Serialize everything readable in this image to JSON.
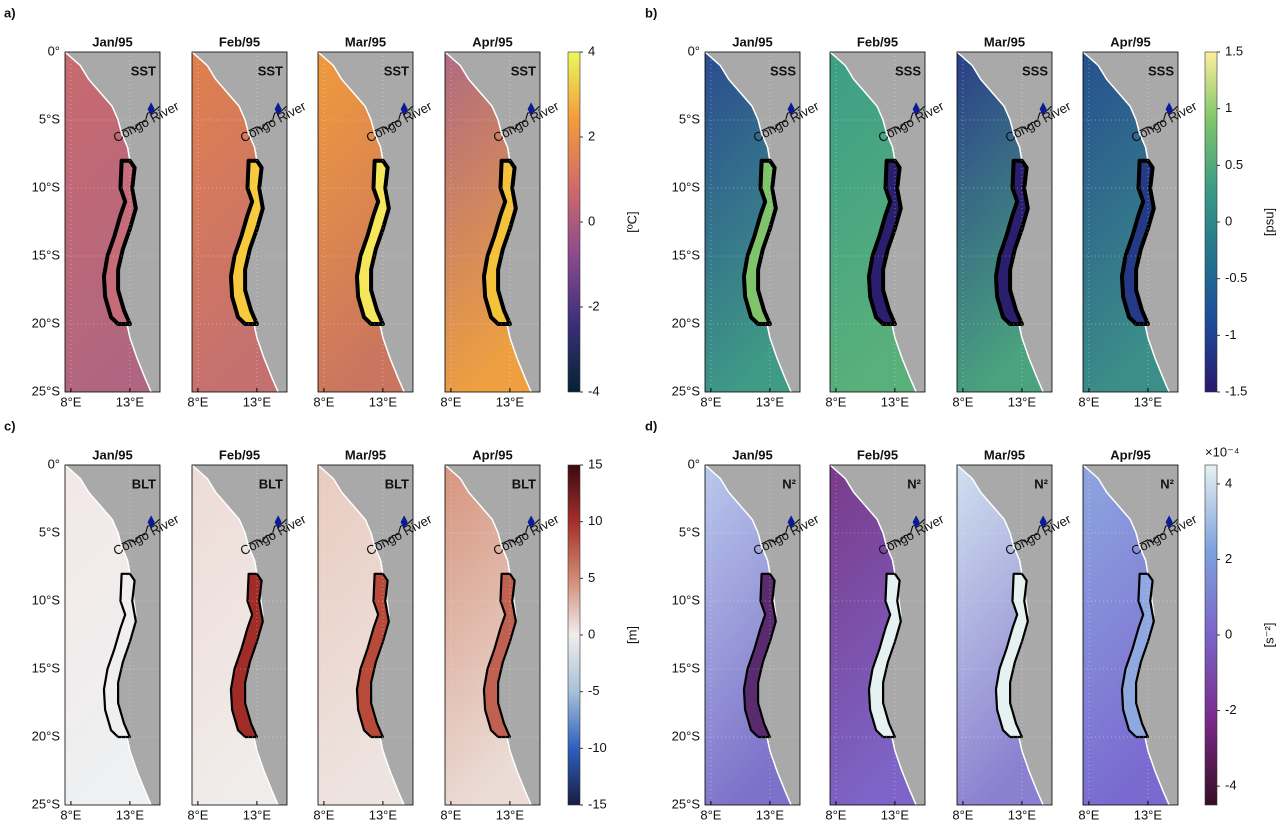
{
  "months": [
    "Jan/95",
    "Feb/95",
    "Mar/95",
    "Apr/95"
  ],
  "lat_ticks": [
    {
      "value": 0,
      "label": "0°"
    },
    {
      "value": -5,
      "label": "5°S"
    },
    {
      "value": -10,
      "label": "10°S"
    },
    {
      "value": -15,
      "label": "15°S"
    },
    {
      "value": -20,
      "label": "20°S"
    },
    {
      "value": -25,
      "label": "25°S"
    }
  ],
  "lon_ticks": [
    {
      "value": 8,
      "label": "8°E"
    },
    {
      "value": 13,
      "label": "13°E"
    }
  ],
  "river_label": "Congo River",
  "panels": [
    {
      "label": "a)",
      "variable": "SST",
      "colorbar": {
        "label": "[ºC]",
        "lim": [
          -4,
          4
        ],
        "ticks": [
          4,
          2,
          0,
          -2,
          -4
        ],
        "colors": [
          "#042333",
          "#3a2f7a",
          "#8a4a8e",
          "#d06a6a",
          "#f49a3c",
          "#e8fa5b"
        ]
      }
    },
    {
      "label": "b)",
      "variable": "SSS",
      "colorbar": {
        "label": "[psu]",
        "lim": [
          -1.5,
          1.5
        ],
        "ticks": [
          1.5,
          1,
          0.5,
          0,
          -0.5,
          -1,
          -1.5
        ],
        "colors": [
          "#2a186c",
          "#1d4b9a",
          "#23738e",
          "#3c9b85",
          "#7ec66a",
          "#fdef9a"
        ]
      }
    },
    {
      "label": "c)",
      "variable": "BLT",
      "colorbar": {
        "label": "[m]",
        "lim": [
          -15,
          15
        ],
        "ticks": [
          15,
          10,
          5,
          0,
          -5,
          -10,
          -15
        ],
        "colors": [
          "#181c43",
          "#2f5fbf",
          "#a6c1d9",
          "#f1ecec",
          "#d08a74",
          "#a42f2a",
          "#3c0912"
        ]
      }
    },
    {
      "label": "d)",
      "variable": "N²",
      "colorbar": {
        "label": "[s⁻²]",
        "multiplier": "×10⁻⁴",
        "lim": [
          -4.5,
          4.5
        ],
        "ticks": [
          4,
          2,
          0,
          -2,
          -4
        ],
        "colors": [
          "#360e24",
          "#7a2a8a",
          "#7b64c8",
          "#7fa2de",
          "#e6f1f1"
        ]
      }
    }
  ]
}
